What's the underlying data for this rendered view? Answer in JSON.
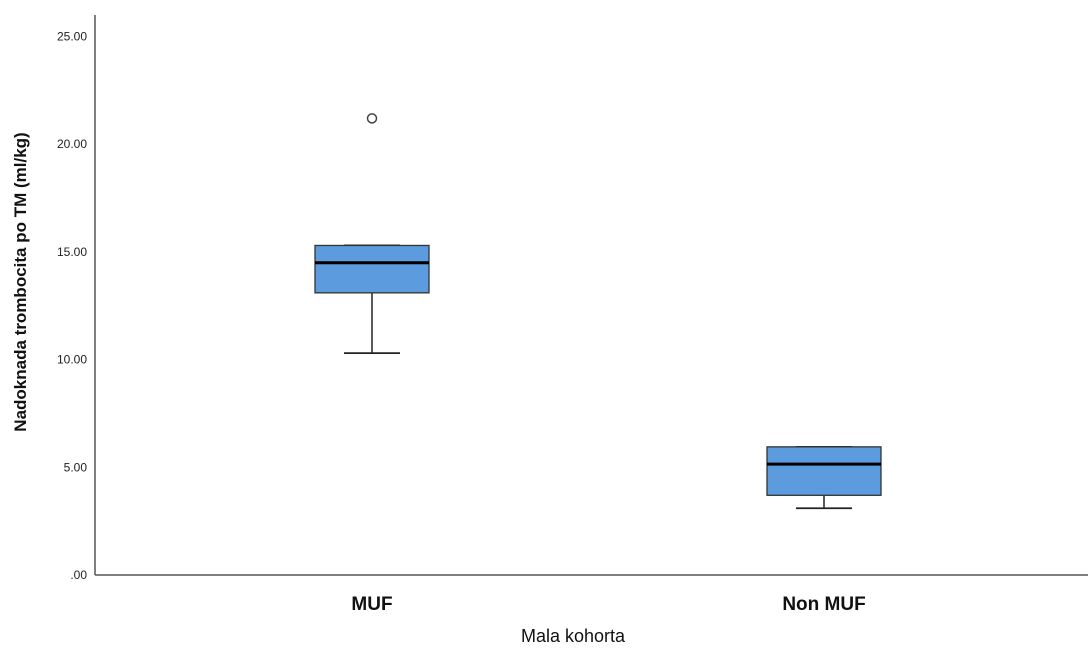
{
  "chart_data": {
    "type": "boxplot",
    "xlabel": "Mala kohorta",
    "ylabel": "Nadoknada trombocita po TM (ml/kg)",
    "ylim": [
      0,
      26
    ],
    "yticks": [
      0,
      5,
      10,
      15,
      20,
      25
    ],
    "ytick_labels": [
      ".00",
      "5.00",
      "10.00",
      "15.00",
      "20.00",
      "25.00"
    ],
    "categories": [
      "MUF",
      "Non MUF"
    ],
    "box_color": "#5b9bde",
    "series": [
      {
        "values": [
          {
            "min": 10.3,
            "q1": 13.1,
            "median": 14.5,
            "q3": 15.3,
            "max": 15.3,
            "outliers": [
              21.2
            ]
          },
          {
            "min": 3.1,
            "q1": 3.7,
            "median": 5.15,
            "q3": 5.95,
            "max": 5.95,
            "outliers": []
          }
        ]
      }
    ],
    "grid": false,
    "legend": "none"
  }
}
